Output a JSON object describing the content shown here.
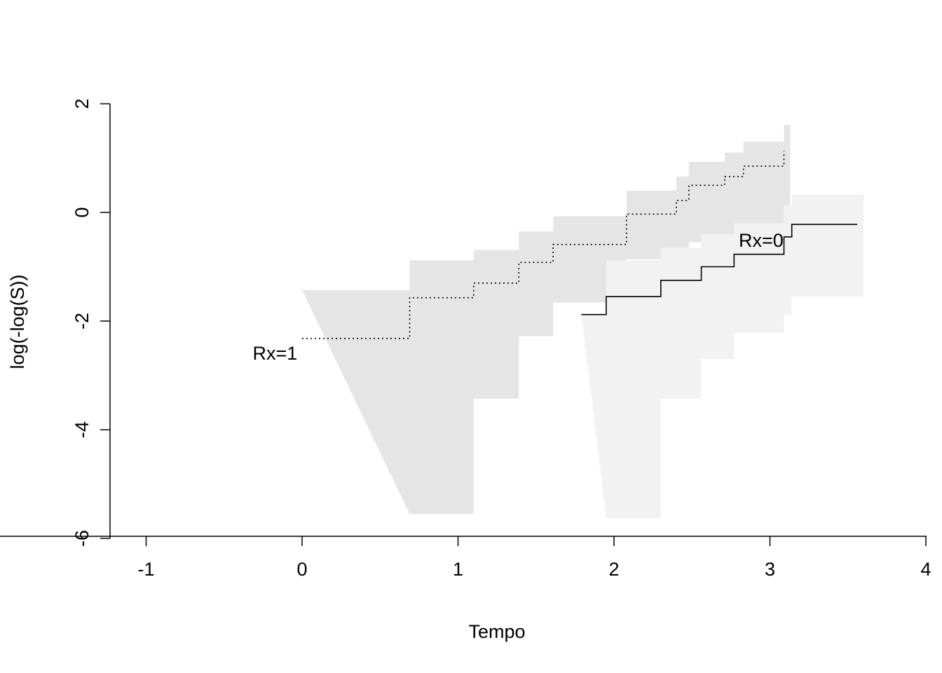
{
  "chart_data": {
    "type": "line",
    "title": "",
    "xlabel": "Tempo",
    "ylabel": "log(-log(S))",
    "xlim": [
      -1.25,
      4
    ],
    "ylim": [
      -6,
      2
    ],
    "x_ticks": [
      -1,
      0,
      1,
      2,
      3,
      4
    ],
    "x_tick_labels": [
      "-1",
      "0",
      "1",
      "2",
      "3",
      "4"
    ],
    "y_ticks": [
      -6,
      -4,
      -2,
      0,
      2
    ],
    "y_tick_labels": [
      "-6",
      "-4",
      "-2",
      "0",
      "2"
    ],
    "grid": false,
    "series": [
      {
        "name": "Rx=1",
        "line_style": "dotted",
        "band_color": "#e5e5e5",
        "x": [
          0.0,
          0.69,
          1.1,
          1.39,
          1.61,
          2.08,
          2.4,
          2.48,
          2.71,
          2.83,
          3.09,
          3.09
        ],
        "y": [
          -2.32,
          -1.57,
          -1.3,
          -0.92,
          -0.59,
          -0.03,
          0.22,
          0.5,
          0.66,
          0.85,
          0.85,
          1.13
        ],
        "lower": [
          -5.55,
          -5.55,
          -3.43,
          -2.28,
          -1.66,
          -0.86,
          -0.86,
          -0.55,
          -0.55,
          -0.55,
          -0.55,
          -0.55
        ],
        "upper": [
          -1.43,
          -0.88,
          -0.69,
          -0.35,
          -0.07,
          0.4,
          0.66,
          0.93,
          1.1,
          1.3,
          1.3,
          1.61
        ]
      },
      {
        "name": "Rx=0",
        "line_style": "solid",
        "band_color": "#f2f2f2",
        "x": [
          1.79,
          1.95,
          2.3,
          2.56,
          2.77,
          3.09,
          3.14,
          3.56
        ],
        "y": [
          -1.88,
          -1.55,
          -1.25,
          -1.0,
          -0.77,
          -0.45,
          -0.22,
          -0.22
        ],
        "lower": [
          -5.63,
          -5.63,
          -3.43,
          -2.7,
          -2.22,
          -1.88,
          -1.55,
          -1.55
        ],
        "upper": [
          -1.88,
          -0.88,
          -0.65,
          -0.4,
          -0.2,
          0.13,
          0.33,
          0.33
        ]
      }
    ],
    "annotations": [
      {
        "text": "Rx=1",
        "x": -0.03,
        "y": -2.58,
        "anchor": "end"
      },
      {
        "text": "Rx=0",
        "x": 2.8,
        "y": -0.5,
        "anchor": "start"
      }
    ]
  }
}
